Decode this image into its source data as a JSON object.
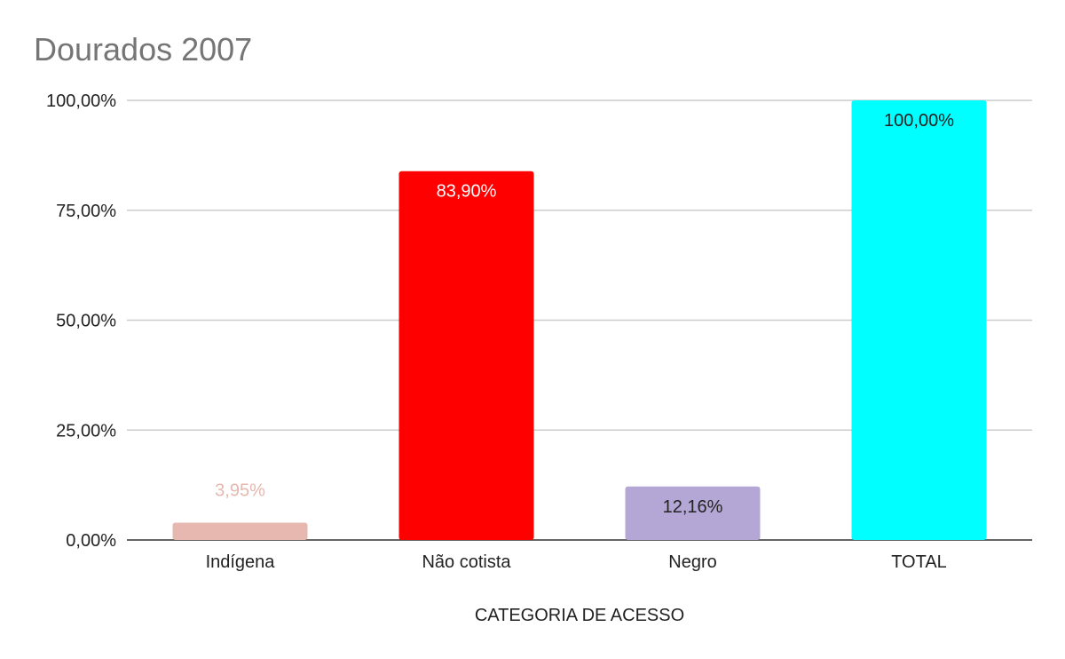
{
  "chart_data": {
    "type": "bar",
    "title": "Dourados 2007",
    "xlabel": "CATEGORIA DE ACESSO",
    "ylabel": "",
    "categories": [
      "Indígena",
      "Não cotista",
      "Negro",
      "TOTAL"
    ],
    "values": [
      3.95,
      83.9,
      12.16,
      100.0
    ],
    "data_labels": [
      "3,95%",
      "83,90%",
      "12,16%",
      "100,00%"
    ],
    "colors": [
      "#e6b8af",
      "#ff0000",
      "#b4a7d6",
      "#00ffff"
    ],
    "label_colors": [
      "#e6b8af",
      "#ffffff",
      "#222222",
      "#222222"
    ],
    "ylim": [
      0,
      100
    ],
    "yticks": [
      0,
      25,
      50,
      75,
      100
    ],
    "ytick_labels": [
      "0,00%",
      "25,00%",
      "50,00%",
      "75,00%",
      "100,00%"
    ],
    "grid": true,
    "legend": "none"
  }
}
